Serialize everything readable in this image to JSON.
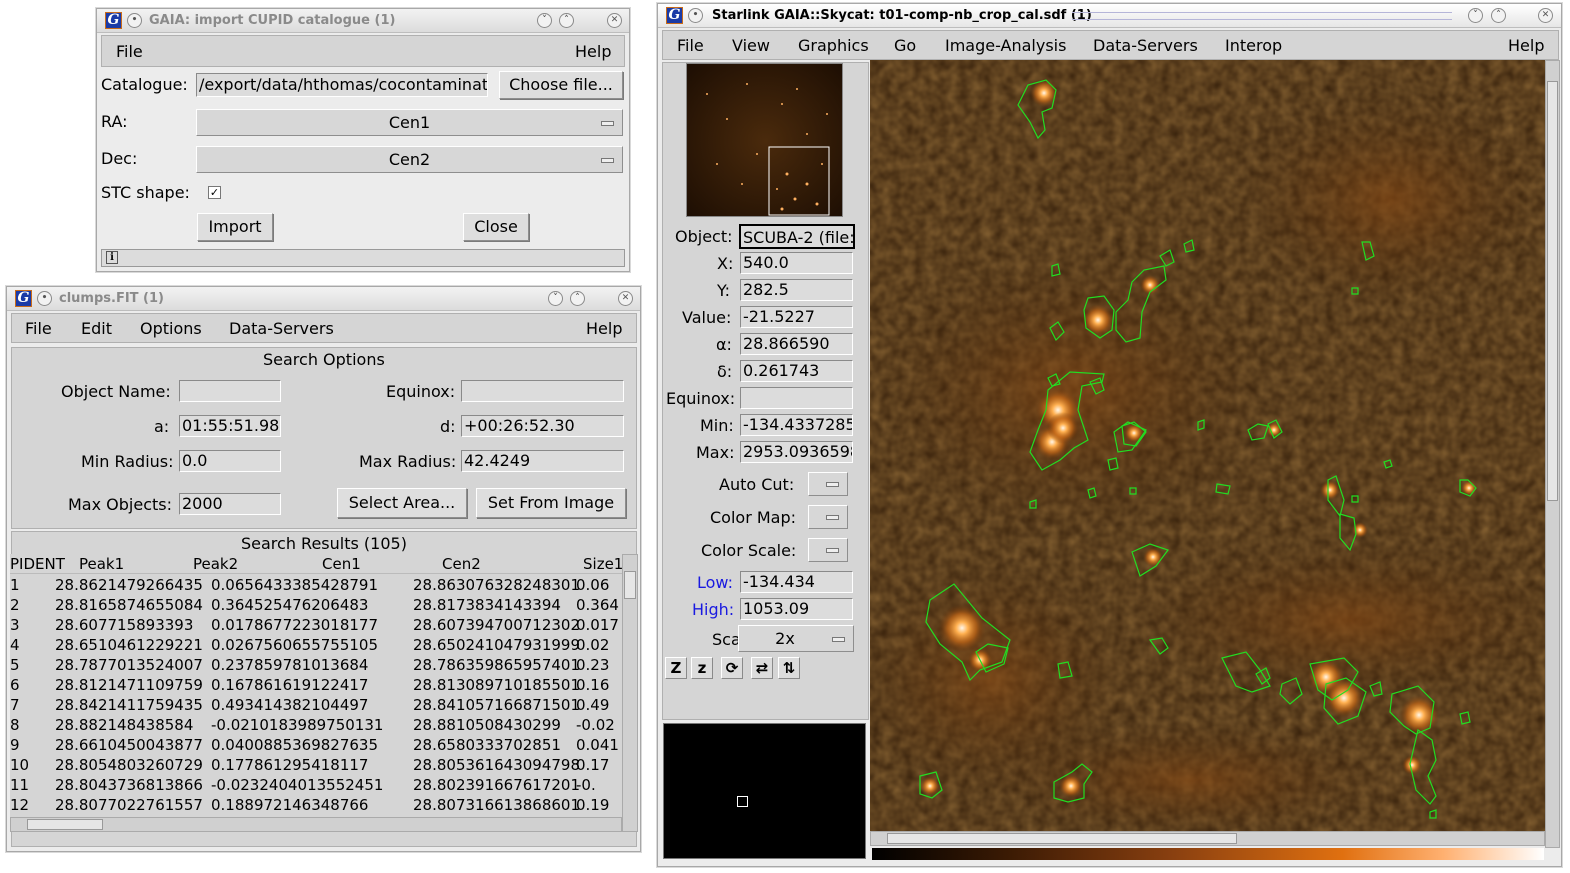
{
  "import_window": {
    "title": "GAIA: import CUPID catalogue (1)",
    "menu": {
      "file": "File",
      "help": "Help"
    },
    "catalogue_label": "Catalogue:",
    "catalogue_value": "/export/data/hthomas/cocontaminat",
    "choose_file": "Choose file...",
    "ra_label": "RA:",
    "ra_value": "Cen1",
    "dec_label": "Dec:",
    "dec_value": "Cen2",
    "stc_label": "STC shape:",
    "stc_checked": "✓",
    "import_button": "Import",
    "close_button": "Close",
    "info_icon": "i"
  },
  "clumps_window": {
    "title": "clumps.FIT (1)",
    "menu": {
      "file": "File",
      "edit": "Edit",
      "options": "Options",
      "data_servers": "Data-Servers",
      "help": "Help"
    },
    "search_options_title": "Search Options",
    "object_name_label": "Object Name:",
    "object_name_value": "",
    "equinox_label": "Equinox:",
    "equinox_value": "",
    "a_label": "a:",
    "a_value": "01:55:51.982",
    "d_label": "d:",
    "d_value": "+00:26:52.30",
    "min_radius_label": "Min Radius:",
    "min_radius_value": "0.0",
    "max_radius_label": "Max Radius:",
    "max_radius_value": "42.4249",
    "max_objects_label": "Max Objects:",
    "max_objects_value": "2000",
    "select_area_button": "Select Area...",
    "set_from_image_button": "Set From Image",
    "results_title": "Search Results (105)",
    "columns": [
      "PIDENT",
      "Peak1",
      "Peak2",
      "Cen1",
      "Cen2",
      "Size1"
    ],
    "rows": [
      [
        "1",
        "28.8621479266435",
        "0.0656433385428791",
        "28.863076328248301",
        "0.06"
      ],
      [
        "2",
        "28.8165874655084",
        "0.364525476206483",
        "28.8173834143394",
        "0.364"
      ],
      [
        "3",
        "28.607715893393",
        "0.0178677223018177",
        "28.607394700712302",
        "0.017"
      ],
      [
        "4",
        "28.6510461229221",
        "0.0267560655755105",
        "28.650241047931999",
        "0.02"
      ],
      [
        "5",
        "28.7877013524007",
        "0.237859781013684",
        "28.786359865957401",
        "0.23"
      ],
      [
        "6",
        "28.8121471109759",
        "0.167861619122417",
        "28.813089710185501",
        "0.16"
      ],
      [
        "7",
        "28.8421411759435",
        "0.493414382104497",
        "28.841057166871501",
        "0.49"
      ],
      [
        "8",
        "28.882148438584",
        "-0.0210183989750131",
        "28.8810508430299",
        "-0.02"
      ],
      [
        "9",
        "28.6610450043877",
        "0.0400885369827635",
        "28.6580333702851",
        "0.041"
      ],
      [
        "10",
        "28.8054803260729",
        "0.177861295418117",
        "28.805361643094798",
        "0.17"
      ],
      [
        "11",
        "28.8043736813866",
        "-0.0232404013552451",
        "28.802391667617201",
        "-0."
      ],
      [
        "12",
        "28.8077022761557",
        "0.188972146348766",
        "28.807316613868601",
        "0.19"
      ]
    ]
  },
  "skycat_window": {
    "title": "Starlink GAIA::Skycat: t01-comp-nb_crop_cal.sdf (1)",
    "menu": {
      "file": "File",
      "view": "View",
      "graphics": "Graphics",
      "go": "Go",
      "image_analysis": "Image-Analysis",
      "data_servers": "Data-Servers",
      "interop": "Interop",
      "help": "Help"
    },
    "object_label": "Object:",
    "object_value": "SCUBA-2 (file:",
    "x_label": "X:",
    "x_value": "540.0",
    "y_label": "Y:",
    "y_value": "282.5",
    "value_label": "Value:",
    "value_value": "-21.5227",
    "alpha_label": "α:",
    "alpha_value": "28.866590",
    "delta_label": "δ:",
    "delta_value": "0.261743",
    "equinox_label": "Equinox:",
    "equinox_value": "",
    "min_label": "Min:",
    "min_value": "-134.4337285",
    "max_label": "Max:",
    "max_value": "2953.0936598",
    "auto_cut_label": "Auto Cut:",
    "color_map_label": "Color Map:",
    "color_scale_label": "Color Scale:",
    "low_label": "Low:",
    "low_value": "-134.434",
    "high_label": "High:",
    "high_value": "1053.09",
    "scale_label": "Scale:",
    "scale_value": "2x",
    "tools": [
      "Z",
      "z",
      "⟳",
      "⇄",
      "⇅"
    ],
    "colors": {
      "accent_blue": "#1a1ae0",
      "contour": "#22dd22",
      "image_bg": "#3a1f08"
    }
  }
}
